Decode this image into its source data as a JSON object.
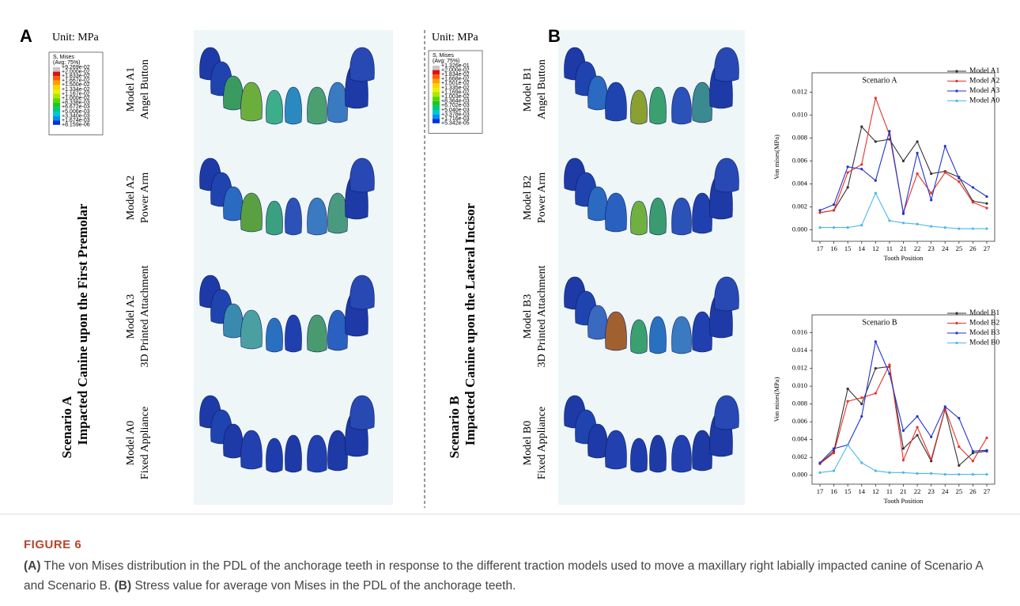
{
  "panel_a": {
    "letter": "A",
    "unit": "Unit: MPa",
    "legend": {
      "title": "S, Mises",
      "subtitle": "(Avg: 75%)",
      "values": [
        "+9.269e-02",
        "+2.000e-02",
        "+1.833e-02",
        "+1.667e-02",
        "+1.500e-02",
        "+1.334e-02",
        "+1.167e-02",
        "+1.000e-02",
        "+8.338e-03",
        "+6.672e-03",
        "+5.006e-03",
        "+3.340e-03",
        "+1.674e-03",
        "+8.159e-06"
      ]
    },
    "rows": [
      {
        "model": "Model A1",
        "name": "Angel Button"
      },
      {
        "model": "Model A2",
        "name": "Power Arm"
      },
      {
        "model": "Model A3",
        "name": "3D Printed Attachment"
      },
      {
        "model": "Model A0",
        "name": "Fixed Appliance"
      }
    ],
    "scenario": "Scenario A",
    "scenario_desc": "Impacted Canine upon the First Premolar"
  },
  "panel_b": {
    "letter": "B",
    "unit": "Unit: MPa",
    "legend": {
      "title": "S, Mises",
      "subtitle": "(Avg: 75%)",
      "values": [
        "+1.326e-01",
        "+2.000e-02",
        "+1.834e-02",
        "+1.668e-02",
        "+1.501e-02",
        "+1.335e-02",
        "+1.169e-02",
        "+1.003e-02",
        "+8.364e-03",
        "+6.702e-03",
        "+5.040e-03",
        "+3.378e-03",
        "+1.716e-03",
        "+5.342e-05"
      ]
    },
    "rows": [
      {
        "model": "Model B1",
        "name": "Angel Button"
      },
      {
        "model": "Model B2",
        "name": "Power Arm"
      },
      {
        "model": "Model B3",
        "name": "3D Printed Attachment"
      },
      {
        "model": "Model B0",
        "name": "Fixed Appliance"
      }
    ],
    "scenario": "Scenario B",
    "scenario_desc": "Impacted Canine upon the Lateral Incisor"
  },
  "chart_data": [
    {
      "type": "line",
      "title": "Scenario A",
      "x_label": "Tooth Position",
      "y_label": "Von mises(MPa)",
      "categories": [
        "17",
        "16",
        "15",
        "14",
        "12",
        "11",
        "21",
        "22",
        "23",
        "24",
        "25",
        "26",
        "27"
      ],
      "ylim": [
        -0.001,
        0.0137
      ],
      "yticks": [
        {
          "value": 0,
          "label": "0.000"
        },
        {
          "value": 0.002,
          "label": "0.002"
        },
        {
          "value": 0.004,
          "label": "0.004"
        },
        {
          "value": 0.006,
          "label": "0.006"
        },
        {
          "value": 0.008,
          "label": "0.008"
        },
        {
          "value": 0.01,
          "label": "0.010"
        },
        {
          "value": 0.012,
          "label": "0.012"
        }
      ],
      "series": [
        {
          "name": "Model A1",
          "color": "#333333",
          "values": [
            0.0015,
            0.0017,
            0.0037,
            0.009,
            0.0077,
            0.0079,
            0.006,
            0.0077,
            0.0049,
            0.0051,
            0.0046,
            0.0025,
            0.0023
          ]
        },
        {
          "name": "Model A2",
          "color": "#e8312a",
          "values": [
            0.0015,
            0.0017,
            0.005,
            0.0057,
            0.0115,
            0.0083,
            0.0015,
            0.0049,
            0.0032,
            0.005,
            0.0042,
            0.0024,
            0.0019
          ]
        },
        {
          "name": "Model A3",
          "color": "#2233cc",
          "values": [
            0.0017,
            0.0022,
            0.0055,
            0.0053,
            0.0043,
            0.0086,
            0.0014,
            0.0067,
            0.0026,
            0.0073,
            0.0045,
            0.0037,
            0.0029
          ]
        },
        {
          "name": "Model A0",
          "color": "#4db8e8",
          "values": [
            0.0002,
            0.0002,
            0.0002,
            0.0004,
            0.0032,
            0.0008,
            0.0006,
            0.0005,
            0.0003,
            0.0002,
            0.0001,
            0.0001,
            0.0001
          ]
        }
      ]
    },
    {
      "type": "line",
      "title": "Scenario B",
      "x_label": "Tooth Position",
      "y_label": "Von mises(MPa)",
      "categories": [
        "17",
        "16",
        "15",
        "14",
        "12",
        "11",
        "21",
        "22",
        "23",
        "24",
        "25",
        "26",
        "27"
      ],
      "ylim": [
        -0.001,
        0.018
      ],
      "yticks": [
        {
          "value": 0,
          "label": "0.000"
        },
        {
          "value": 0.002,
          "label": "0.002"
        },
        {
          "value": 0.004,
          "label": "0.004"
        },
        {
          "value": 0.006,
          "label": "0.006"
        },
        {
          "value": 0.008,
          "label": "0.008"
        },
        {
          "value": 0.01,
          "label": "0.010"
        },
        {
          "value": 0.012,
          "label": "0.012"
        },
        {
          "value": 0.014,
          "label": "0.014"
        },
        {
          "value": 0.016,
          "label": "0.016"
        }
      ],
      "series": [
        {
          "name": "Model B1",
          "color": "#333333",
          "values": [
            0.0013,
            0.0027,
            0.0097,
            0.008,
            0.012,
            0.0122,
            0.003,
            0.0045,
            0.0016,
            0.0074,
            0.0011,
            0.0025,
            0.0027
          ]
        },
        {
          "name": "Model B2",
          "color": "#e8312a",
          "values": [
            0.0013,
            0.0025,
            0.0083,
            0.0087,
            0.0092,
            0.0124,
            0.0017,
            0.0054,
            0.0018,
            0.0075,
            0.0032,
            0.0016,
            0.0042
          ]
        },
        {
          "name": "Model B3",
          "color": "#2233cc",
          "values": [
            0.0014,
            0.003,
            0.0034,
            0.0066,
            0.015,
            0.0114,
            0.005,
            0.0066,
            0.0043,
            0.0077,
            0.0064,
            0.0027,
            0.0028
          ]
        },
        {
          "name": "Model B0",
          "color": "#4db8e8",
          "values": [
            0.0003,
            0.0005,
            0.0034,
            0.0014,
            0.0005,
            0.0003,
            0.0003,
            0.0002,
            0.0002,
            0.0001,
            0.0001,
            0.0001,
            0.0001
          ]
        }
      ]
    }
  ],
  "caption": {
    "label": "FIGURE 6",
    "parts": [
      "(A)",
      " The von Mises distribution in the PDL of the anchorage teeth in response to the different traction models used to move a maxillary right labially impacted canine of Scenario A and Scenario B. ",
      "(B)",
      " Stress value for average von Mises in the PDL of the anchorage teeth."
    ]
  }
}
